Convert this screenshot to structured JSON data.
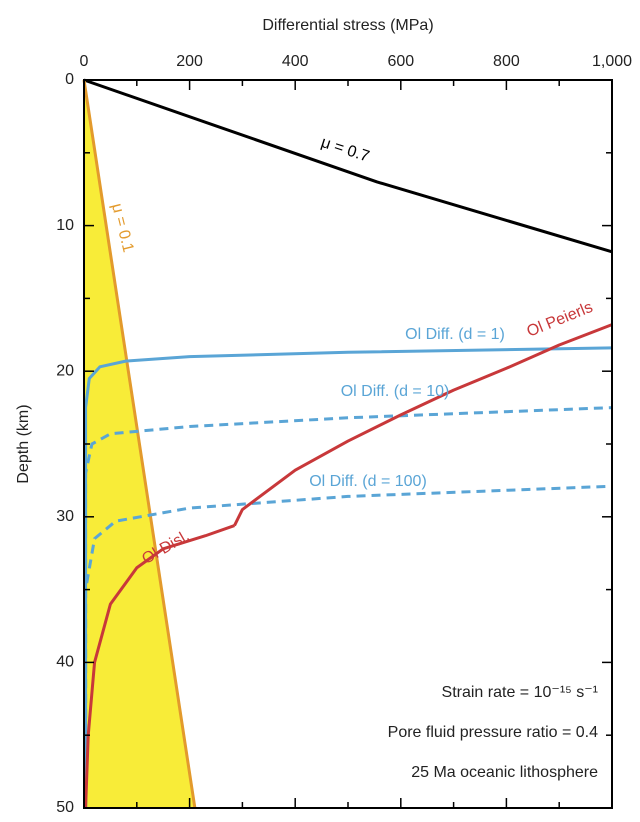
{
  "chart_data": {
    "type": "line",
    "xlabel": "Differential stress (MPa)",
    "ylabel": "Depth (km)",
    "xlim": [
      0,
      1000
    ],
    "ylim": [
      0,
      50
    ],
    "y_inverted": true,
    "x_axis_position": "top",
    "xticks": [
      0,
      200,
      400,
      600,
      800,
      {
        "value": 1000,
        "label": "1,000"
      }
    ],
    "xminorticks": [
      100,
      300,
      500,
      700,
      900
    ],
    "yticks": [
      0,
      10,
      20,
      30,
      40,
      50
    ],
    "yminorticks": [
      5,
      15,
      25,
      35,
      45
    ],
    "series": [
      {
        "name": "μ = 0.7",
        "color": "#000000",
        "dash": false,
        "x": [
          0,
          555,
          1000
        ],
        "y": [
          0,
          7.0,
          11.8
        ]
      },
      {
        "name": "μ = 0.1",
        "color": "#e39a2c",
        "dash": false,
        "fill": "#f8ec38",
        "x": [
          0,
          210
        ],
        "y": [
          0,
          50
        ]
      },
      {
        "name": "Ol Diff. (d = 1)",
        "color": "#5aa5d6",
        "dash": false,
        "x": [
          3,
          3,
          10,
          30,
          80,
          200,
          500,
          1000
        ],
        "y": [
          50,
          22.5,
          20.5,
          19.7,
          19.3,
          19.0,
          18.7,
          18.4
        ]
      },
      {
        "name": "Ol Diff. (d = 10)",
        "color": "#5aa5d6",
        "dash": true,
        "x": [
          3,
          3,
          15,
          50,
          200,
          500,
          1000
        ],
        "y": [
          50,
          27,
          25,
          24.3,
          23.8,
          23.2,
          22.5
        ]
      },
      {
        "name": "Ol Diff. (d = 100)",
        "color": "#5aa5d6",
        "dash": true,
        "x": [
          3,
          3,
          20,
          60,
          200,
          500,
          1000
        ],
        "y": [
          50,
          35,
          31.5,
          30.3,
          29.4,
          28.6,
          27.9
        ]
      },
      {
        "name": "Ol Disl.",
        "color": "#c8383a",
        "dash": false,
        "x": [
          3,
          8,
          20,
          50,
          100,
          150,
          230,
          285
        ],
        "y": [
          50,
          45,
          40,
          36,
          33.5,
          32.2,
          31.3,
          30.6
        ]
      },
      {
        "name": "Ol Peierls",
        "color": "#c8383a",
        "dash": false,
        "x": [
          285,
          300,
          400,
          500,
          600,
          700,
          800,
          900,
          1000
        ],
        "y": [
          30.6,
          29.5,
          26.8,
          24.8,
          23.0,
          21.3,
          19.8,
          18.2,
          16.8
        ]
      }
    ],
    "annotations": [
      "Strain rate = 10⁻¹⁵ s⁻¹",
      "Pore fluid pressure ratio = 0.4",
      "25 Ma oceanic lithosphere"
    ]
  }
}
